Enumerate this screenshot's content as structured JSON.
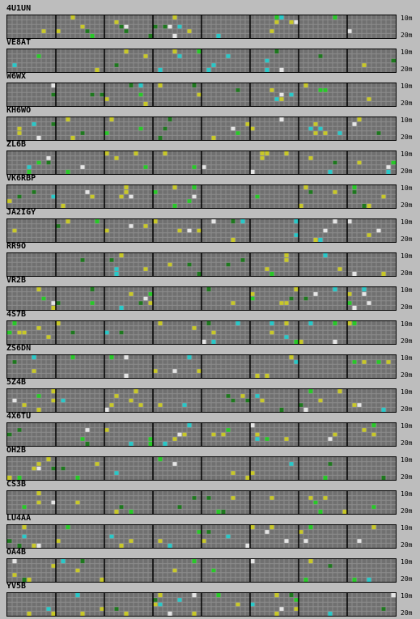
{
  "bands": {
    "top": "10m",
    "bottom": "20m"
  },
  "colors": {
    "background": "#bdbdbd",
    "grid_fill": "#707070",
    "grid_line": "#8c8c8c",
    "segment_divider": "#000000",
    "signal_yellow": "#c8c828",
    "signal_green": "#28c828",
    "signal_dark_green": "#1e781e",
    "signal_cyan": "#28c8c8",
    "signal_white": "#e6e6e6"
  },
  "grid": {
    "rows": 5,
    "columns": 80,
    "segments": 8
  },
  "beacons": [
    {
      "call": "4U1UN"
    },
    {
      "call": "VE8AT"
    },
    {
      "call": "W6WX"
    },
    {
      "call": "KH6WO"
    },
    {
      "call": "ZL6B"
    },
    {
      "call": "VK6RBP"
    },
    {
      "call": "JA2IGY"
    },
    {
      "call": "RR9O"
    },
    {
      "call": "VR2B"
    },
    {
      "call": "4S7B"
    },
    {
      "call": "ZS6DN"
    },
    {
      "call": "5Z4B"
    },
    {
      "call": "4X6TU"
    },
    {
      "call": "OH2B"
    },
    {
      "call": "CS3B"
    },
    {
      "call": "LU4AA"
    },
    {
      "call": "OA4B"
    },
    {
      "call": "YV5B"
    }
  ]
}
